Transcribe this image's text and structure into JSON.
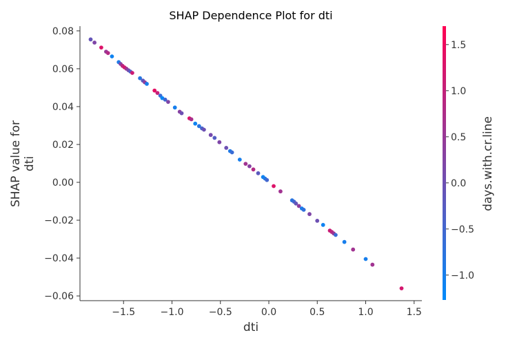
{
  "chart_data": {
    "type": "scatter",
    "title": "SHAP Dependence Plot for dti",
    "xlabel": "dti",
    "ylabel_lines": [
      "SHAP value for",
      "dti"
    ],
    "xlim": [
      -1.95,
      1.58
    ],
    "ylim": [
      -0.0625,
      0.0825
    ],
    "xticks": [
      -1.5,
      -1.0,
      -0.5,
      0.0,
      0.5,
      1.0,
      1.5
    ],
    "xtick_labels": [
      "−1.5",
      "−1.0",
      "−0.5",
      "0.0",
      "0.5",
      "1.0",
      "1.5"
    ],
    "yticks": [
      -0.06,
      -0.04,
      -0.02,
      0.0,
      0.02,
      0.04,
      0.06,
      0.08
    ],
    "ytick_labels": [
      "−0.06",
      "−0.04",
      "−0.02",
      "0.00",
      "0.02",
      "0.04",
      "0.06",
      "0.08"
    ],
    "colorbar": {
      "label": "days.with.cr.line",
      "range": [
        -1.27,
        1.7
      ],
      "ticks": [
        -1.0,
        -0.5,
        0.0,
        0.5,
        1.0,
        1.5
      ],
      "tick_labels": [
        "−1.0",
        "−0.5",
        "0.0",
        "0.5",
        "1.0",
        "1.5"
      ],
      "colors": [
        "#008bfb",
        "#ff0052"
      ]
    },
    "points": [
      {
        "x": -1.84,
        "y": 0.0755,
        "c": -0.1
      },
      {
        "x": -1.8,
        "y": 0.0738,
        "c": 0.2
      },
      {
        "x": -1.73,
        "y": 0.0712,
        "c": 1.3
      },
      {
        "x": -1.68,
        "y": 0.069,
        "c": 0.5
      },
      {
        "x": -1.66,
        "y": 0.0683,
        "c": 0.8
      },
      {
        "x": -1.62,
        "y": 0.0665,
        "c": -1.1
      },
      {
        "x": -1.55,
        "y": 0.0635,
        "c": -0.9
      },
      {
        "x": -1.53,
        "y": 0.0625,
        "c": 0.3
      },
      {
        "x": -1.51,
        "y": 0.0615,
        "c": 0.9
      },
      {
        "x": -1.49,
        "y": 0.0607,
        "c": 1.2
      },
      {
        "x": -1.47,
        "y": 0.06,
        "c": 0.6
      },
      {
        "x": -1.45,
        "y": 0.0592,
        "c": 0.1
      },
      {
        "x": -1.43,
        "y": 0.0585,
        "c": -0.3
      },
      {
        "x": -1.41,
        "y": 0.0578,
        "c": 1.1
      },
      {
        "x": -1.33,
        "y": 0.055,
        "c": -0.8
      },
      {
        "x": -1.3,
        "y": 0.0537,
        "c": -0.2
      },
      {
        "x": -1.28,
        "y": 0.0528,
        "c": 0.4
      },
      {
        "x": -1.26,
        "y": 0.052,
        "c": -1.0
      },
      {
        "x": -1.18,
        "y": 0.0485,
        "c": 1.4
      },
      {
        "x": -1.15,
        "y": 0.0472,
        "c": 1.0
      },
      {
        "x": -1.12,
        "y": 0.0458,
        "c": -0.6
      },
      {
        "x": -1.1,
        "y": 0.0445,
        "c": -1.2
      },
      {
        "x": -1.07,
        "y": 0.0437,
        "c": -0.5
      },
      {
        "x": -1.04,
        "y": 0.0425,
        "c": 0.2
      },
      {
        "x": -0.97,
        "y": 0.0395,
        "c": -1.0
      },
      {
        "x": -0.92,
        "y": 0.0373,
        "c": 0.3
      },
      {
        "x": -0.9,
        "y": 0.0365,
        "c": 0.0
      },
      {
        "x": -0.82,
        "y": 0.0338,
        "c": 1.3
      },
      {
        "x": -0.8,
        "y": 0.0333,
        "c": 0.7
      },
      {
        "x": -0.76,
        "y": 0.031,
        "c": -1.1
      },
      {
        "x": -0.72,
        "y": 0.0297,
        "c": -0.8
      },
      {
        "x": -0.69,
        "y": 0.0285,
        "c": -0.4
      },
      {
        "x": -0.67,
        "y": 0.0278,
        "c": 0.0
      },
      {
        "x": -0.6,
        "y": 0.025,
        "c": 0.1
      },
      {
        "x": -0.56,
        "y": 0.0235,
        "c": -0.3
      },
      {
        "x": -0.51,
        "y": 0.0212,
        "c": 0.2
      },
      {
        "x": -0.44,
        "y": 0.0182,
        "c": 0.0
      },
      {
        "x": -0.4,
        "y": 0.0165,
        "c": -0.9
      },
      {
        "x": -0.38,
        "y": 0.0158,
        "c": -0.6
      },
      {
        "x": -0.3,
        "y": 0.012,
        "c": -1.0
      },
      {
        "x": -0.24,
        "y": 0.0098,
        "c": 0.6
      },
      {
        "x": -0.2,
        "y": 0.0085,
        "c": 0.3
      },
      {
        "x": -0.16,
        "y": 0.0068,
        "c": 0.8
      },
      {
        "x": -0.11,
        "y": 0.0048,
        "c": -0.2
      },
      {
        "x": -0.06,
        "y": 0.0028,
        "c": -1.1
      },
      {
        "x": -0.04,
        "y": 0.002,
        "c": -0.9
      },
      {
        "x": -0.02,
        "y": 0.0012,
        "c": -0.5
      },
      {
        "x": 0.05,
        "y": -0.002,
        "c": 1.3
      },
      {
        "x": 0.12,
        "y": -0.0048,
        "c": 0.6
      },
      {
        "x": 0.24,
        "y": -0.0095,
        "c": -0.8
      },
      {
        "x": 0.26,
        "y": -0.0102,
        "c": -0.5
      },
      {
        "x": 0.28,
        "y": -0.0112,
        "c": -0.1
      },
      {
        "x": 0.31,
        "y": -0.0125,
        "c": 0.4
      },
      {
        "x": 0.34,
        "y": -0.0138,
        "c": -1.0
      },
      {
        "x": 0.36,
        "y": -0.0145,
        "c": -0.7
      },
      {
        "x": 0.42,
        "y": -0.0168,
        "c": 0.2
      },
      {
        "x": 0.5,
        "y": -0.0203,
        "c": 0.0
      },
      {
        "x": 0.56,
        "y": -0.0225,
        "c": -1.1
      },
      {
        "x": 0.63,
        "y": -0.0255,
        "c": 1.1
      },
      {
        "x": 0.65,
        "y": -0.0262,
        "c": 0.9
      },
      {
        "x": 0.67,
        "y": -0.027,
        "c": 0.5
      },
      {
        "x": 0.69,
        "y": -0.0278,
        "c": -0.6
      },
      {
        "x": 0.78,
        "y": -0.0315,
        "c": -1.0
      },
      {
        "x": 0.87,
        "y": -0.0355,
        "c": 0.6
      },
      {
        "x": 1.0,
        "y": -0.0405,
        "c": -1.0
      },
      {
        "x": 1.07,
        "y": -0.0435,
        "c": 0.6
      },
      {
        "x": 1.37,
        "y": -0.056,
        "c": 1.2
      }
    ]
  }
}
